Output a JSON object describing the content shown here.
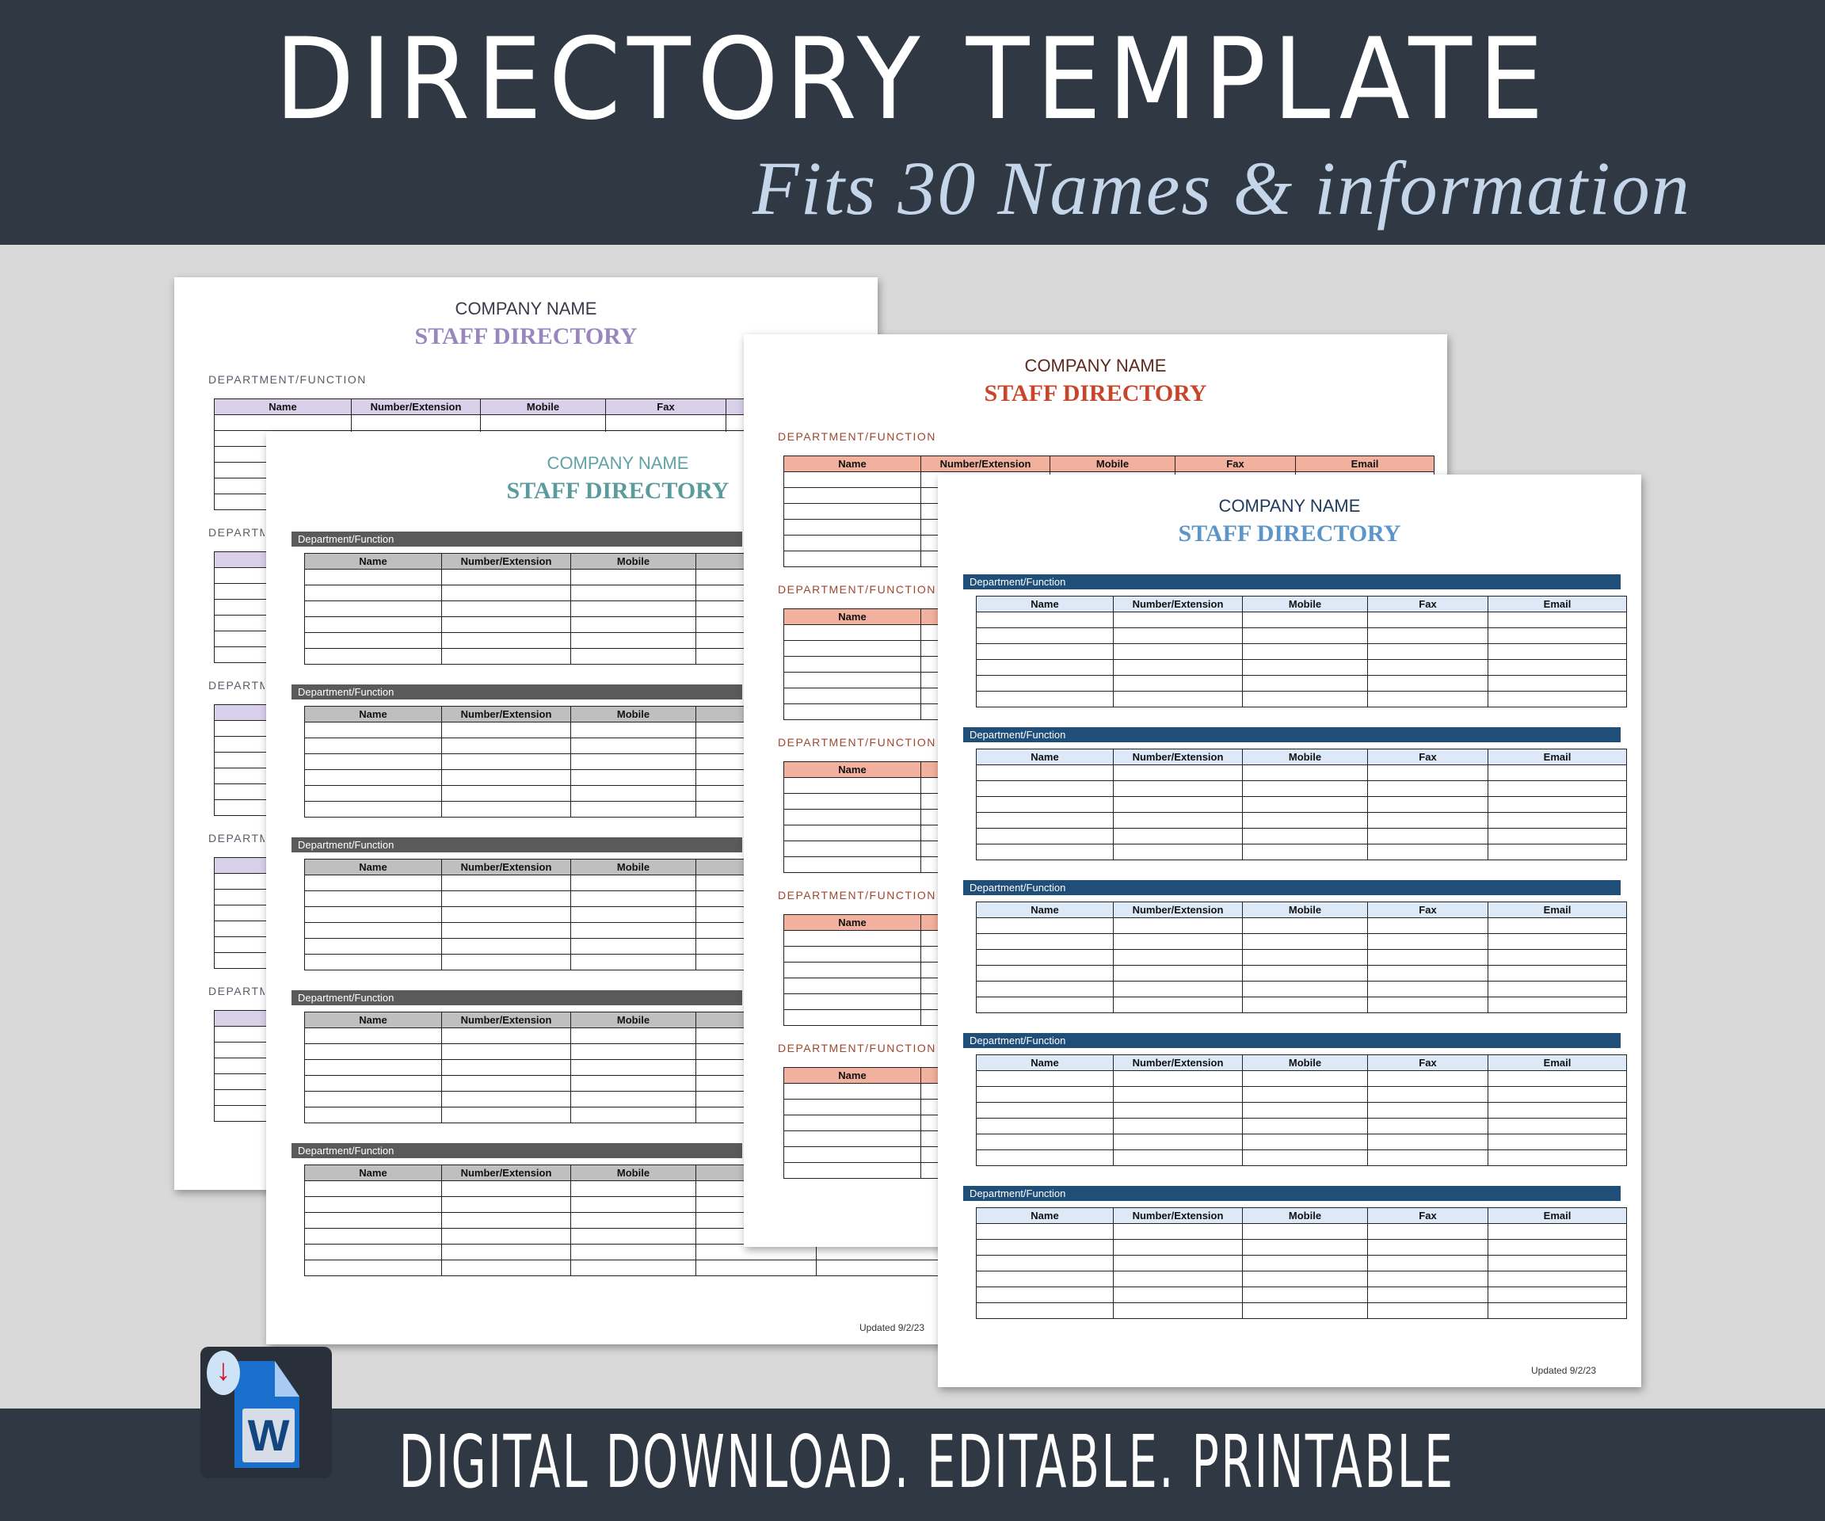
{
  "banner": {
    "title": "DIRECTORY TEMPLATE",
    "subtitle": "Fits 30 Names & information"
  },
  "footer": {
    "text": "DIGITAL DOWNLOAD. EDITABLE. PRINTABLE",
    "icon": "word-download-icon",
    "icon_letter": "W",
    "icon_arrow": "↓"
  },
  "pages": [
    {
      "style": "label",
      "company_name": "COMPANY NAME",
      "title": "STAFF DIRECTORY",
      "section_label": "DEPARTMENT/FUNCTION",
      "columns": [
        "Name",
        "Number/Extension",
        "Mobile",
        "Fax",
        "Email"
      ],
      "colors": {
        "company": "#3b3a4a",
        "title": "#9a86bf",
        "label": "#5a5a6a",
        "header": "#d9d0ea"
      }
    },
    {
      "style": "bar",
      "company_name": "COMPANY NAME",
      "title": "STAFF DIRECTORY",
      "section_label": "Department/Function",
      "columns": [
        "Name",
        "Number/Extension",
        "Mobile",
        "Fax",
        "Email"
      ],
      "updated": "Updated 9/2/23",
      "colors": {
        "company": "#5fa3a5",
        "title": "#5a9c9e",
        "bar": "#5a5a5a",
        "header": "#bfbfbf"
      }
    },
    {
      "style": "label",
      "company_name": "COMPANY NAME",
      "title": "STAFF DIRECTORY",
      "section_label": "DEPARTMENT/FUNCTION",
      "columns": [
        "Name",
        "Number/Extension",
        "Mobile",
        "Fax",
        "Email"
      ],
      "colors": {
        "company": "#5a2a1e",
        "title": "#c9452a",
        "label": "#a0462e",
        "header": "#f2b09e"
      }
    },
    {
      "style": "bar",
      "company_name": "COMPANY NAME",
      "title": "STAFF DIRECTORY",
      "section_label": "Department/Function",
      "columns": [
        "Name",
        "Number/Extension",
        "Mobile",
        "Fax",
        "Email"
      ],
      "updated": "Updated 9/2/23",
      "colors": {
        "company": "#1f3a5a",
        "title": "#5b95c9",
        "bar": "#1f4e79",
        "header": "#dde9f6"
      }
    }
  ]
}
